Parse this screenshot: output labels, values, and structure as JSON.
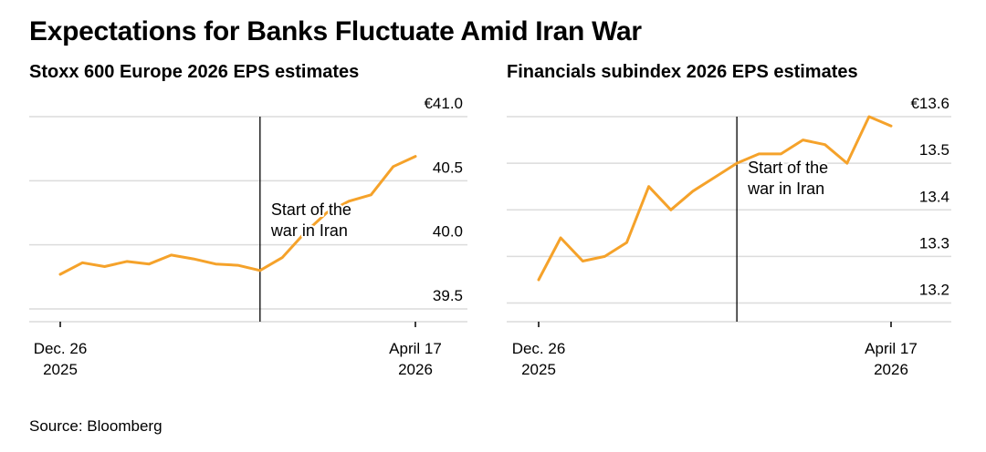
{
  "title": "Expectations for Banks Fluctuate Amid Iran War",
  "source": "Source: Bloomberg",
  "colors": {
    "line": "#f5a22a",
    "grid": "#dcdcdc",
    "axis": "#000000",
    "text": "#000000"
  },
  "chart_data": [
    {
      "type": "line",
      "title": "Stoxx 600 Europe 2026 EPS estimates",
      "x_labels": [
        {
          "index": 0,
          "lines": [
            "Dec. 26",
            "2025"
          ]
        },
        {
          "index": 16,
          "lines": [
            "April 17",
            "2026"
          ]
        }
      ],
      "y_ticks": [
        {
          "value": 41.0,
          "label": "€41.0"
        },
        {
          "value": 40.5,
          "label": "40.5"
        },
        {
          "value": 40.0,
          "label": "40.0"
        },
        {
          "value": 39.5,
          "label": "39.5"
        }
      ],
      "ylim": [
        39.4,
        41.0
      ],
      "grid": true,
      "series": [
        {
          "values": [
            39.77,
            39.86,
            39.83,
            39.87,
            39.85,
            39.92,
            39.89,
            39.85,
            39.84,
            39.8,
            39.9,
            40.09,
            40.25,
            40.34,
            40.39,
            40.61,
            40.69
          ]
        }
      ],
      "event": {
        "index": 9,
        "label_lines": [
          "Start of the",
          "war in Iran"
        ]
      }
    },
    {
      "type": "line",
      "title": "Financials subindex 2026 EPS estimates",
      "x_labels": [
        {
          "index": 0,
          "lines": [
            "Dec. 26",
            "2025"
          ]
        },
        {
          "index": 16,
          "lines": [
            "April 17",
            "2026"
          ]
        }
      ],
      "y_ticks": [
        {
          "value": 13.6,
          "label": "€13.6"
        },
        {
          "value": 13.5,
          "label": "13.5"
        },
        {
          "value": 13.4,
          "label": "13.4"
        },
        {
          "value": 13.3,
          "label": "13.3"
        },
        {
          "value": 13.2,
          "label": "13.2"
        }
      ],
      "ylim": [
        13.16,
        13.6
      ],
      "grid": true,
      "series": [
        {
          "values": [
            13.25,
            13.34,
            13.29,
            13.3,
            13.33,
            13.45,
            13.4,
            13.44,
            13.47,
            13.5,
            13.52,
            13.52,
            13.55,
            13.54,
            13.5,
            13.6,
            13.58
          ]
        }
      ],
      "event": {
        "index": 9,
        "label_lines": [
          "Start of the",
          "war in Iran"
        ]
      }
    }
  ]
}
